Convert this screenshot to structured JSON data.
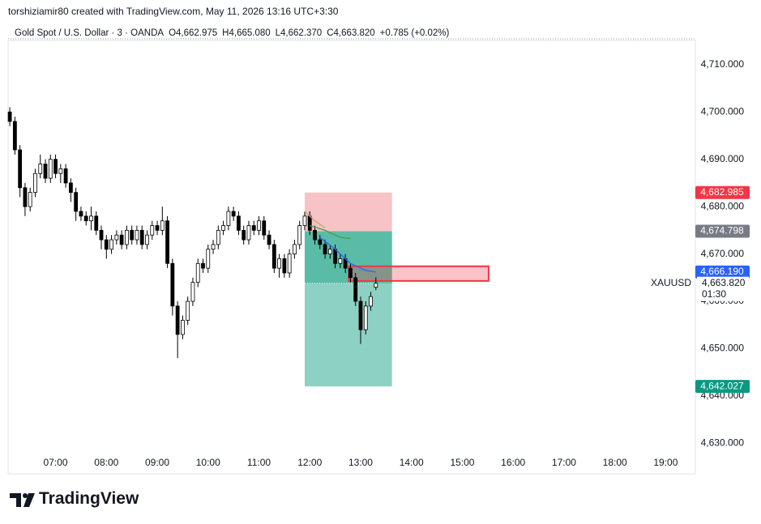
{
  "brand": "TradingView",
  "chart_data": {
    "type": "candlestick",
    "title": "torshiziamir80 created with TradingView.com, May 11, 2026 13:16 UTC+3:30",
    "legend_items": [
      "Gold Spot / U.S. Dollar · 3 · OANDA",
      "O4,662.975",
      "H4,665.080",
      "L4,662.370",
      "C4,663.820",
      "+0.785 (+0.02%)"
    ],
    "x": [
      "06:06",
      "06:12",
      "06:18",
      "06:24",
      "06:30",
      "06:36",
      "06:42",
      "06:48",
      "06:54",
      "07:00",
      "07:06",
      "07:12",
      "07:18",
      "07:24",
      "07:30",
      "07:36",
      "07:42",
      "07:48",
      "07:54",
      "08:00",
      "08:06",
      "08:12",
      "08:18",
      "08:24",
      "08:30",
      "08:36",
      "08:42",
      "08:48",
      "08:54",
      "09:00",
      "09:06",
      "09:12",
      "09:18",
      "09:24",
      "09:30",
      "09:36",
      "09:42",
      "09:48",
      "09:54",
      "10:00",
      "10:06",
      "10:12",
      "10:18",
      "10:24",
      "10:30",
      "10:36",
      "10:42",
      "10:48",
      "10:54",
      "11:00",
      "11:06",
      "11:12",
      "11:18",
      "11:24",
      "11:30",
      "11:36",
      "11:42",
      "11:48",
      "11:54",
      "12:00",
      "12:06",
      "12:12",
      "12:18",
      "12:24",
      "12:30",
      "12:36",
      "12:42",
      "12:48",
      "12:54",
      "13:00",
      "13:06",
      "13:12",
      "13:18"
    ],
    "open": [
      4700,
      4698,
      4692,
      4684,
      4680,
      4683,
      4687,
      4689,
      4686,
      4690,
      4687,
      4688,
      4685,
      4683,
      4679,
      4678,
      4677,
      4678,
      4675,
      4673,
      4671,
      4673,
      4674,
      4672,
      4675,
      4673,
      4675,
      4672,
      4674,
      4676,
      4675,
      4677,
      4668,
      4659,
      4653,
      4656,
      4660,
      4664,
      4668,
      4667,
      4671,
      4672,
      4675,
      4676,
      4679,
      4678,
      4675,
      4673,
      4676,
      4675,
      4677,
      4674,
      4672,
      4667,
      4669,
      4666,
      4670,
      4672,
      4676,
      4678,
      4675,
      4673,
      4672,
      4670,
      4671,
      4668,
      4669,
      4667,
      4665,
      4660,
      4654,
      4659,
      4662.975
    ],
    "high": [
      4701,
      4699,
      4693,
      4685,
      4684,
      4688,
      4691,
      4690,
      4691,
      4691,
      4689,
      4689,
      4686,
      4684,
      4680,
      4679,
      4680,
      4679,
      4676,
      4674,
      4674,
      4675,
      4675,
      4676,
      4676,
      4676,
      4676,
      4675,
      4677,
      4677,
      4680,
      4678,
      4669,
      4660,
      4657,
      4661,
      4665,
      4669,
      4669,
      4672,
      4673,
      4676,
      4677,
      4680,
      4680,
      4679,
      4676,
      4677,
      4677,
      4678,
      4678,
      4675,
      4673,
      4670,
      4670,
      4671,
      4673,
      4677,
      4679,
      4679,
      4676,
      4674,
      4673,
      4672,
      4672,
      4670,
      4670,
      4668,
      4666,
      4661,
      4660,
      4662,
      4665.08
    ],
    "low": [
      4697,
      4691,
      4682,
      4678,
      4679,
      4682,
      4686,
      4685,
      4685,
      4686,
      4685,
      4684,
      4681,
      4677,
      4677,
      4676,
      4675,
      4674,
      4671,
      4669,
      4670,
      4672,
      4671,
      4671,
      4672,
      4672,
      4671,
      4671,
      4673,
      4674,
      4674,
      4667,
      4657,
      4648,
      4652,
      4655,
      4659,
      4663,
      4666,
      4666,
      4670,
      4671,
      4674,
      4675,
      4677,
      4674,
      4672,
      4672,
      4674,
      4674,
      4673,
      4671,
      4666,
      4665,
      4665,
      4665,
      4669,
      4671,
      4675,
      4674,
      4672,
      4671,
      4669,
      4669,
      4667,
      4667,
      4666,
      4664,
      4659,
      4651,
      4653,
      4658,
      4662.37
    ],
    "close": [
      4698,
      4692,
      4684,
      4680,
      4683,
      4687,
      4689,
      4686,
      4690,
      4687,
      4688,
      4685,
      4683,
      4679,
      4678,
      4677,
      4678,
      4675,
      4673,
      4671,
      4673,
      4674,
      4672,
      4675,
      4673,
      4675,
      4672,
      4674,
      4676,
      4675,
      4677,
      4668,
      4659,
      4653,
      4656,
      4660,
      4664,
      4668,
      4667,
      4671,
      4672,
      4675,
      4676,
      4679,
      4678,
      4675,
      4673,
      4676,
      4675,
      4677,
      4674,
      4672,
      4667,
      4669,
      4666,
      4670,
      4672,
      4676,
      4678,
      4675,
      4673,
      4672,
      4670,
      4671,
      4668,
      4669,
      4667,
      4665,
      4660,
      4654,
      4659,
      4661,
      4663.82
    ],
    "up_color": "#ffffff",
    "down_color": "#000000",
    "wick_color": "#000000",
    "lines": [
      {
        "color": "#c9a46a",
        "x": [
          "11:54",
          "12:06",
          "12:18"
        ],
        "values": [
          4679,
          4677,
          4675.5
        ]
      },
      {
        "color": "#43a047",
        "x": [
          "12:00",
          "12:18",
          "12:36",
          "12:48"
        ],
        "values": [
          4676,
          4675,
          4673.5,
          4673.3
        ]
      },
      {
        "color": "#2962ff",
        "x": [
          "12:12",
          "12:30",
          "12:48",
          "13:06",
          "13:18"
        ],
        "values": [
          4673.5,
          4671,
          4668,
          4666.5,
          4666.19
        ]
      }
    ],
    "position": {
      "start": "11:54",
      "end": "13:37",
      "stop": {
        "value": 4682.985,
        "label": "4,682.985"
      },
      "entry": {
        "value": 4674.798,
        "label": "4,674.798"
      },
      "target": {
        "value": 4642.027,
        "label": "4,642.027"
      },
      "stop_color": "#f8c3c6",
      "target_color": "#8dd1c4",
      "overlap_color": "#4db6a0"
    },
    "zone": {
      "start": "12:46",
      "end": "15:31",
      "top": 4667.4,
      "bottom": 4664.3,
      "color": "#f23645"
    },
    "price_markers": [
      {
        "value": 4666.19,
        "label": "4,666.190",
        "color": "#2962ff"
      }
    ],
    "symbol": "XAUUSD",
    "last_price": {
      "value": 4663.82,
      "label": "4,663.820"
    },
    "countdown": "01:30",
    "xlim": [
      "06:04",
      "19:35"
    ],
    "xticks": [
      "07:00",
      "08:00",
      "09:00",
      "10:00",
      "11:00",
      "12:00",
      "13:00",
      "14:00",
      "15:00",
      "16:00",
      "17:00",
      "18:00",
      "19:00"
    ],
    "ylim": [
      4626.9,
      4715.1
    ],
    "yticks": [
      {
        "value": 4630,
        "label": "4,630.000"
      },
      {
        "value": 4640,
        "label": "4,640.000"
      },
      {
        "value": 4650,
        "label": "4,650.000"
      },
      {
        "value": 4660,
        "label": "4,660.000"
      },
      {
        "value": 4670,
        "label": "4,670.000"
      },
      {
        "value": 4680,
        "label": "4,680.000"
      },
      {
        "value": 4690,
        "label": "4,690.000"
      },
      {
        "value": 4700,
        "label": "4,700.000"
      },
      {
        "value": 4710,
        "label": "4,710.000"
      }
    ],
    "grid": false
  }
}
